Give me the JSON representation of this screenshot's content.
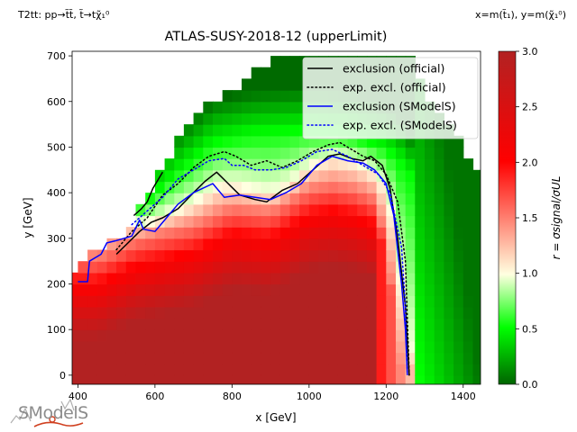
{
  "header": {
    "process": "T2tt: pp→t̃t̃, t̃→tχ̃₁⁰",
    "axes_vars": "x=m(t̃₁), y=m(χ̃₁⁰)"
  },
  "logo": {
    "text": "SModelS"
  },
  "chart_data": {
    "type": "heatmap",
    "title": "ATLAS-SUSY-2018-12 (upperLimit)",
    "xlabel": "x [GeV]",
    "ylabel": "y [GeV]",
    "xlim": [
      385,
      1445
    ],
    "ylim": [
      -20,
      710
    ],
    "xticks": [
      400,
      600,
      800,
      1000,
      1200,
      1400
    ],
    "yticks": [
      0,
      100,
      200,
      300,
      400,
      500,
      600,
      700
    ],
    "colorbar": {
      "label": "r = σsignal/σUL",
      "range": [
        0.0,
        3.0
      ],
      "ticks": [
        0.0,
        0.5,
        1.0,
        1.5,
        2.0,
        2.5,
        3.0
      ],
      "colors": [
        "#006400",
        "#00ff00",
        "#ffffe0",
        "#ff0000",
        "#b22222"
      ]
    },
    "grid": false,
    "legend_position": "top-right",
    "cell_size": [
      25,
      25
    ],
    "heatmap_model": {
      "upper_boundary": [
        [
          385,
          220
        ],
        [
          440,
          270
        ],
        [
          500,
          300
        ],
        [
          540,
          330
        ],
        [
          590,
          410
        ],
        [
          640,
          490
        ],
        [
          700,
          560
        ],
        [
          760,
          610
        ],
        [
          820,
          640
        ],
        [
          880,
          680
        ],
        [
          950,
          710
        ],
        [
          1250,
          710
        ],
        [
          1300,
          620
        ],
        [
          1350,
          560
        ],
        [
          1400,
          510
        ],
        [
          1430,
          450
        ],
        [
          1445,
          430
        ]
      ],
      "max_x": 1445,
      "r_contour_1": [
        [
          550,
          330
        ],
        [
          600,
          340
        ],
        [
          700,
          380
        ],
        [
          760,
          415
        ],
        [
          800,
          420
        ],
        [
          900,
          400
        ],
        [
          950,
          420
        ],
        [
          1000,
          460
        ],
        [
          1060,
          480
        ],
        [
          1120,
          470
        ],
        [
          1180,
          440
        ],
        [
          1210,
          380
        ],
        [
          1240,
          200
        ],
        [
          1270,
          0
        ]
      ],
      "r_contour_1_5": [
        [
          450,
          260
        ],
        [
          550,
          300
        ],
        [
          700,
          330
        ],
        [
          800,
          370
        ],
        [
          900,
          360
        ],
        [
          1000,
          410
        ],
        [
          1060,
          420
        ],
        [
          1120,
          410
        ],
        [
          1170,
          390
        ],
        [
          1200,
          300
        ],
        [
          1220,
          150
        ],
        [
          1230,
          0
        ]
      ],
      "r_contour_0_5": [
        [
          560,
          370
        ],
        [
          650,
          440
        ],
        [
          750,
          510
        ],
        [
          850,
          530
        ],
        [
          1000,
          540
        ],
        [
          1100,
          530
        ],
        [
          1200,
          500
        ],
        [
          1260,
          450
        ],
        [
          1300,
          350
        ],
        [
          1340,
          200
        ],
        [
          1380,
          0
        ]
      ]
    },
    "legend": [
      {
        "label": "exclusion (official)",
        "color": "#000000",
        "style": "solid"
      },
      {
        "label": "exp. excl. (official)",
        "color": "#000000",
        "style": "dotted"
      },
      {
        "label": "exclusion (SModelS)",
        "color": "#0000ff",
        "style": "solid"
      },
      {
        "label": "exp. excl. (SModelS)",
        "color": "#0000ff",
        "style": "dotted"
      }
    ],
    "series": [
      {
        "name": "exclusion (official)",
        "color": "#000000",
        "style": "solid",
        "x": [
          500,
          530,
          560,
          590,
          620,
          660,
          700,
          730,
          760,
          790,
          820,
          860,
          890,
          930,
          970,
          1010,
          1050,
          1080,
          1110,
          1140,
          1160,
          1190,
          1210,
          1230,
          1250,
          1260
        ],
        "y": [
          265,
          290,
          315,
          335,
          345,
          365,
          400,
          425,
          445,
          420,
          395,
          385,
          380,
          405,
          420,
          450,
          480,
          485,
          475,
          470,
          480,
          460,
          410,
          300,
          150,
          0
        ]
      },
      {
        "name": "exclusion (official) branch",
        "color": "#000000",
        "style": "solid",
        "x": [
          545,
          565,
          580,
          595,
          620
        ],
        "y": [
          350,
          365,
          380,
          410,
          445
        ]
      },
      {
        "name": "exp. excl. (official)",
        "color": "#000000",
        "style": "dotted",
        "x": [
          500,
          540,
          580,
          620,
          660,
          700,
          740,
          780,
          810,
          850,
          890,
          930,
          970,
          1010,
          1050,
          1080,
          1110,
          1140,
          1170,
          1200,
          1230,
          1250,
          1260
        ],
        "y": [
          275,
          315,
          345,
          395,
          420,
          455,
          480,
          490,
          480,
          460,
          470,
          455,
          470,
          490,
          505,
          510,
          495,
          480,
          470,
          440,
          380,
          250,
          0
        ]
      },
      {
        "name": "exclusion (SModelS)",
        "color": "#0000ff",
        "style": "solid",
        "x": [
          400,
          425,
          430,
          460,
          475,
          500,
          540,
          560,
          570,
          600,
          620,
          660,
          700,
          750,
          780,
          820,
          860,
          900,
          940,
          980,
          1020,
          1060,
          1100,
          1140,
          1170,
          1200,
          1220,
          1240,
          1250,
          1255
        ],
        "y": [
          205,
          205,
          250,
          265,
          290,
          295,
          305,
          340,
          320,
          315,
          335,
          375,
          400,
          420,
          390,
          395,
          390,
          385,
          400,
          420,
          460,
          480,
          470,
          465,
          450,
          420,
          350,
          200,
          100,
          0
        ]
      },
      {
        "name": "exp. excl. (SModelS)",
        "color": "#0000ff",
        "style": "dotted",
        "x": [
          540,
          580,
          620,
          660,
          700,
          740,
          780,
          800,
          830,
          860,
          900,
          940,
          980,
          1020,
          1060,
          1100,
          1140,
          1180,
          1210,
          1240,
          1250,
          1255
        ],
        "y": [
          330,
          360,
          390,
          430,
          450,
          470,
          475,
          460,
          460,
          450,
          450,
          455,
          470,
          490,
          495,
          480,
          460,
          440,
          400,
          280,
          150,
          0
        ]
      }
    ]
  }
}
